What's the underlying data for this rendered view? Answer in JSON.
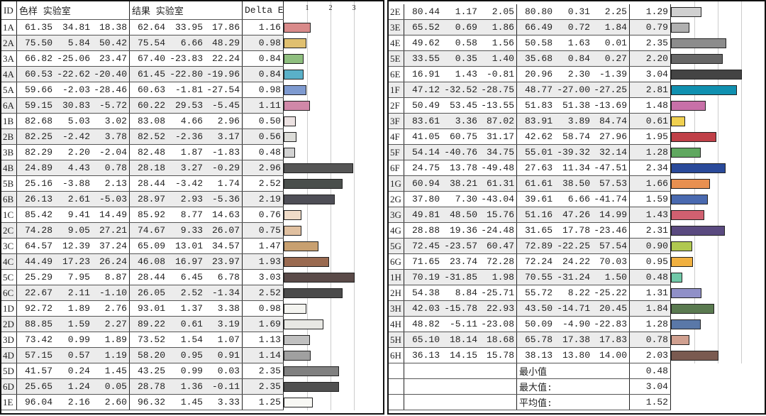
{
  "headers": {
    "id": "ID",
    "sample": "色样 实验室",
    "result": "结果 实验室",
    "delta": "Delta E"
  },
  "chart_data": {
    "type": "bar",
    "orientation": "horizontal",
    "value_column": "Delta E",
    "x_ticks": [
      "1",
      "2",
      "3"
    ],
    "xlim": [
      0,
      3.1
    ],
    "grid": true,
    "columns": [
      "ID",
      "L",
      "a",
      "b",
      "L",
      "a",
      "b",
      "Delta E",
      "color"
    ],
    "left_rows": [
      [
        "1A",
        "61.35",
        "34.81",
        "18.38",
        "62.64",
        "33.95",
        "17.86",
        "1.16",
        "#d98a8a"
      ],
      [
        "2A",
        "75.50",
        "5.84",
        "50.42",
        "75.54",
        "6.66",
        "48.29",
        "0.98",
        "#e0c070"
      ],
      [
        "3A",
        "66.82",
        "-25.06",
        "23.47",
        "67.40",
        "-23.83",
        "22.24",
        "0.84",
        "#8fbf7f"
      ],
      [
        "4A",
        "60.53",
        "-22.62",
        "-20.40",
        "61.45",
        "-22.80",
        "-19.96",
        "0.84",
        "#5ab0c8"
      ],
      [
        "5A",
        "59.66",
        "-2.03",
        "-28.46",
        "60.63",
        "-1.81",
        "-27.54",
        "0.98",
        "#7e9ad0"
      ],
      [
        "6A",
        "59.15",
        "30.83",
        "-5.72",
        "60.22",
        "29.53",
        "-5.45",
        "1.11",
        "#d088a8"
      ],
      [
        "1B",
        "82.68",
        "5.03",
        "3.02",
        "83.08",
        "4.66",
        "2.96",
        "0.50",
        "#ece2e2"
      ],
      [
        "2B",
        "82.25",
        "-2.42",
        "3.78",
        "82.52",
        "-2.36",
        "3.17",
        "0.56",
        "#dcdcd8"
      ],
      [
        "3B",
        "82.29",
        "2.20",
        "-2.04",
        "82.48",
        "1.87",
        "-1.83",
        "0.48",
        "#d2d2d2"
      ],
      [
        "4B",
        "24.89",
        "4.43",
        "0.78",
        "28.18",
        "3.27",
        "-0.29",
        "2.96",
        "#555555"
      ],
      [
        "5B",
        "25.16",
        "-3.88",
        "2.13",
        "28.44",
        "-3.42",
        "1.74",
        "2.52",
        "#4a4f4c"
      ],
      [
        "6B",
        "26.13",
        "2.61",
        "-5.03",
        "28.97",
        "2.93",
        "-5.36",
        "2.19",
        "#4e4e56"
      ],
      [
        "1C",
        "85.42",
        "9.41",
        "14.49",
        "85.92",
        "8.77",
        "14.63",
        "0.76",
        "#f0dcc8"
      ],
      [
        "2C",
        "74.28",
        "9.05",
        "27.21",
        "74.67",
        "9.33",
        "26.07",
        "0.75",
        "#e0c0a0"
      ],
      [
        "3C",
        "64.57",
        "12.39",
        "37.24",
        "65.09",
        "13.01",
        "34.57",
        "1.47",
        "#c8a070"
      ],
      [
        "4C",
        "44.49",
        "17.23",
        "26.24",
        "46.08",
        "16.97",
        "23.97",
        "1.93",
        "#9a6a50"
      ],
      [
        "5C",
        "25.29",
        "7.95",
        "8.87",
        "28.44",
        "6.45",
        "6.78",
        "3.03",
        "#5a4a48"
      ],
      [
        "6C",
        "22.67",
        "2.11",
        "-1.10",
        "26.05",
        "2.52",
        "-1.34",
        "2.52",
        "#4a4a4a"
      ],
      [
        "1D",
        "92.72",
        "1.89",
        "2.76",
        "93.01",
        "1.37",
        "3.38",
        "0.98",
        "#f4f4f0"
      ],
      [
        "2D",
        "88.85",
        "1.59",
        "2.27",
        "89.22",
        "0.61",
        "3.19",
        "1.69",
        "#e8e8e4"
      ],
      [
        "3D",
        "73.42",
        "0.99",
        "1.89",
        "73.52",
        "1.54",
        "1.07",
        "1.13",
        "#c0c0c0"
      ],
      [
        "4D",
        "57.15",
        "0.57",
        "1.19",
        "58.20",
        "0.95",
        "0.91",
        "1.14",
        "#a0a0a0"
      ],
      [
        "5D",
        "41.57",
        "0.24",
        "1.45",
        "43.25",
        "0.99",
        "0.03",
        "2.35",
        "#808080"
      ],
      [
        "6D",
        "25.65",
        "1.24",
        "0.05",
        "28.78",
        "1.36",
        "-0.11",
        "2.35",
        "#505050"
      ],
      [
        "1E",
        "96.04",
        "2.16",
        "2.60",
        "96.32",
        "1.45",
        "3.33",
        "1.25",
        "#f8f8f4"
      ]
    ],
    "right_rows": [
      [
        "2E",
        "80.44",
        "1.17",
        "2.05",
        "80.80",
        "0.31",
        "2.25",
        "1.29",
        "#d0d0d0"
      ],
      [
        "3E",
        "65.52",
        "0.69",
        "1.86",
        "66.49",
        "0.72",
        "1.84",
        "0.79",
        "#b0b0b0"
      ],
      [
        "4E",
        "49.62",
        "0.58",
        "1.56",
        "50.58",
        "1.63",
        "0.01",
        "2.35",
        "#8c8c8c"
      ],
      [
        "5E",
        "33.55",
        "0.35",
        "1.40",
        "35.68",
        "0.84",
        "0.27",
        "2.20",
        "#666666"
      ],
      [
        "6E",
        "16.91",
        "1.43",
        "-0.81",
        "20.96",
        "2.30",
        "-1.39",
        "3.04",
        "#444444"
      ],
      [
        "1F",
        "47.12",
        "-32.52",
        "-28.75",
        "48.77",
        "-27.00",
        "-27.25",
        "2.81",
        "#1090b0"
      ],
      [
        "2F",
        "50.49",
        "53.45",
        "-13.55",
        "51.83",
        "51.38",
        "-13.69",
        "1.48",
        "#c870a8"
      ],
      [
        "3F",
        "83.61",
        "3.36",
        "87.02",
        "83.91",
        "3.89",
        "84.74",
        "0.61",
        "#f0d050"
      ],
      [
        "4F",
        "41.05",
        "60.75",
        "31.17",
        "42.62",
        "58.74",
        "27.96",
        "1.95",
        "#c04048"
      ],
      [
        "5F",
        "54.14",
        "-40.76",
        "34.75",
        "55.01",
        "-39.32",
        "32.14",
        "1.28",
        "#60a860"
      ],
      [
        "6F",
        "24.75",
        "13.78",
        "-49.48",
        "27.63",
        "11.34",
        "-47.51",
        "2.34",
        "#2a4a9a"
      ],
      [
        "1G",
        "60.94",
        "38.21",
        "61.31",
        "61.61",
        "38.50",
        "57.53",
        "1.66",
        "#e89050"
      ],
      [
        "2G",
        "37.80",
        "7.30",
        "-43.04",
        "39.61",
        "6.66",
        "-41.74",
        "1.59",
        "#4a6ab0"
      ],
      [
        "3G",
        "49.81",
        "48.50",
        "15.76",
        "51.16",
        "47.26",
        "14.99",
        "1.43",
        "#d06070"
      ],
      [
        "4G",
        "28.88",
        "19.36",
        "-24.48",
        "31.65",
        "17.78",
        "-23.46",
        "2.31",
        "#5a4a80"
      ],
      [
        "5G",
        "72.45",
        "-23.57",
        "60.47",
        "72.89",
        "-22.25",
        "57.54",
        "0.90",
        "#b0c850"
      ],
      [
        "6G",
        "71.65",
        "23.74",
        "72.28",
        "72.24",
        "24.22",
        "70.03",
        "0.95",
        "#f0b040"
      ],
      [
        "1H",
        "70.19",
        "-31.85",
        "1.98",
        "70.55",
        "-31.24",
        "1.50",
        "0.48",
        "#70c8a8"
      ],
      [
        "2H",
        "54.38",
        "8.84",
        "-25.71",
        "55.72",
        "8.22",
        "-25.22",
        "1.31",
        "#9090c8"
      ],
      [
        "3H",
        "42.03",
        "-15.78",
        "22.93",
        "43.50",
        "-14.71",
        "20.45",
        "1.84",
        "#5a7a50"
      ],
      [
        "4H",
        "48.82",
        "-5.11",
        "-23.08",
        "50.09",
        "-4.90",
        "-22.83",
        "1.28",
        "#5a78a8"
      ],
      [
        "5H",
        "65.10",
        "18.14",
        "18.68",
        "65.78",
        "17.38",
        "17.83",
        "0.78",
        "#d0a090"
      ],
      [
        "6H",
        "36.13",
        "14.15",
        "15.78",
        "38.13",
        "13.80",
        "14.00",
        "2.03",
        "#7a5a50"
      ]
    ],
    "summary": [
      {
        "label": "最小值",
        "value": "0.48"
      },
      {
        "label": "最大值:",
        "value": "3.04"
      },
      {
        "label": "平均值:",
        "value": "1.52"
      }
    ]
  }
}
